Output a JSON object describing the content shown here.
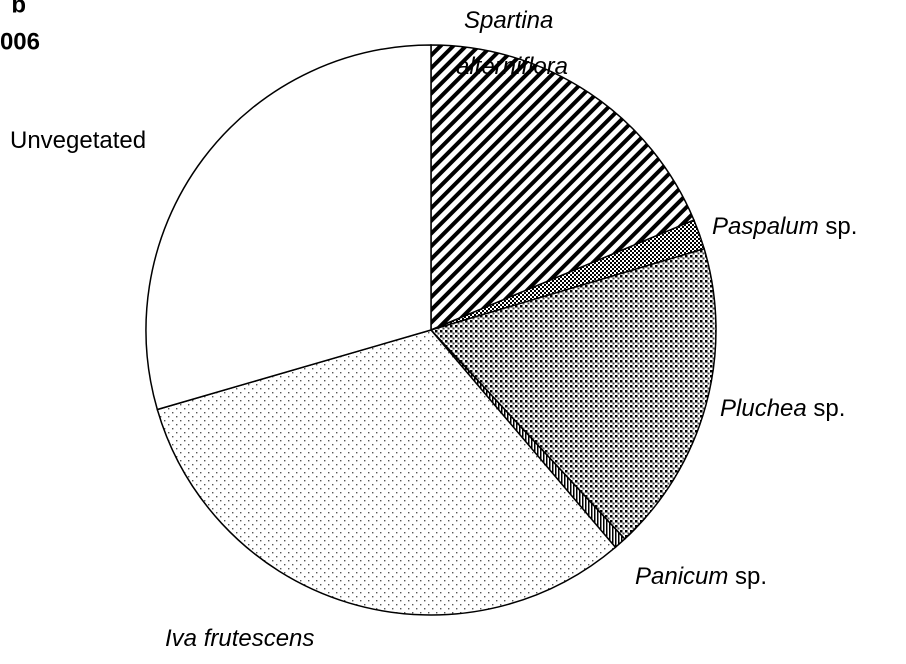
{
  "chart_data": {
    "type": "pie",
    "title": [
      "b",
      "006"
    ],
    "categories": [
      "Spartina alterniflora",
      "Paspalum sp.",
      "Pluchea sp.",
      "Panicum sp.",
      "Iva frutescens",
      "Unvegetated"
    ],
    "values": [
      18.7,
      1.7,
      17.7,
      0.7,
      31.7,
      29.5
    ],
    "patterns": [
      "diagonal",
      "checker",
      "dense-dots",
      "vertical",
      "sparse-dots",
      "none"
    ],
    "italic_words": [
      2,
      1,
      1,
      1,
      2,
      0
    ],
    "start_angle": 0,
    "direction": "clockwise"
  }
}
